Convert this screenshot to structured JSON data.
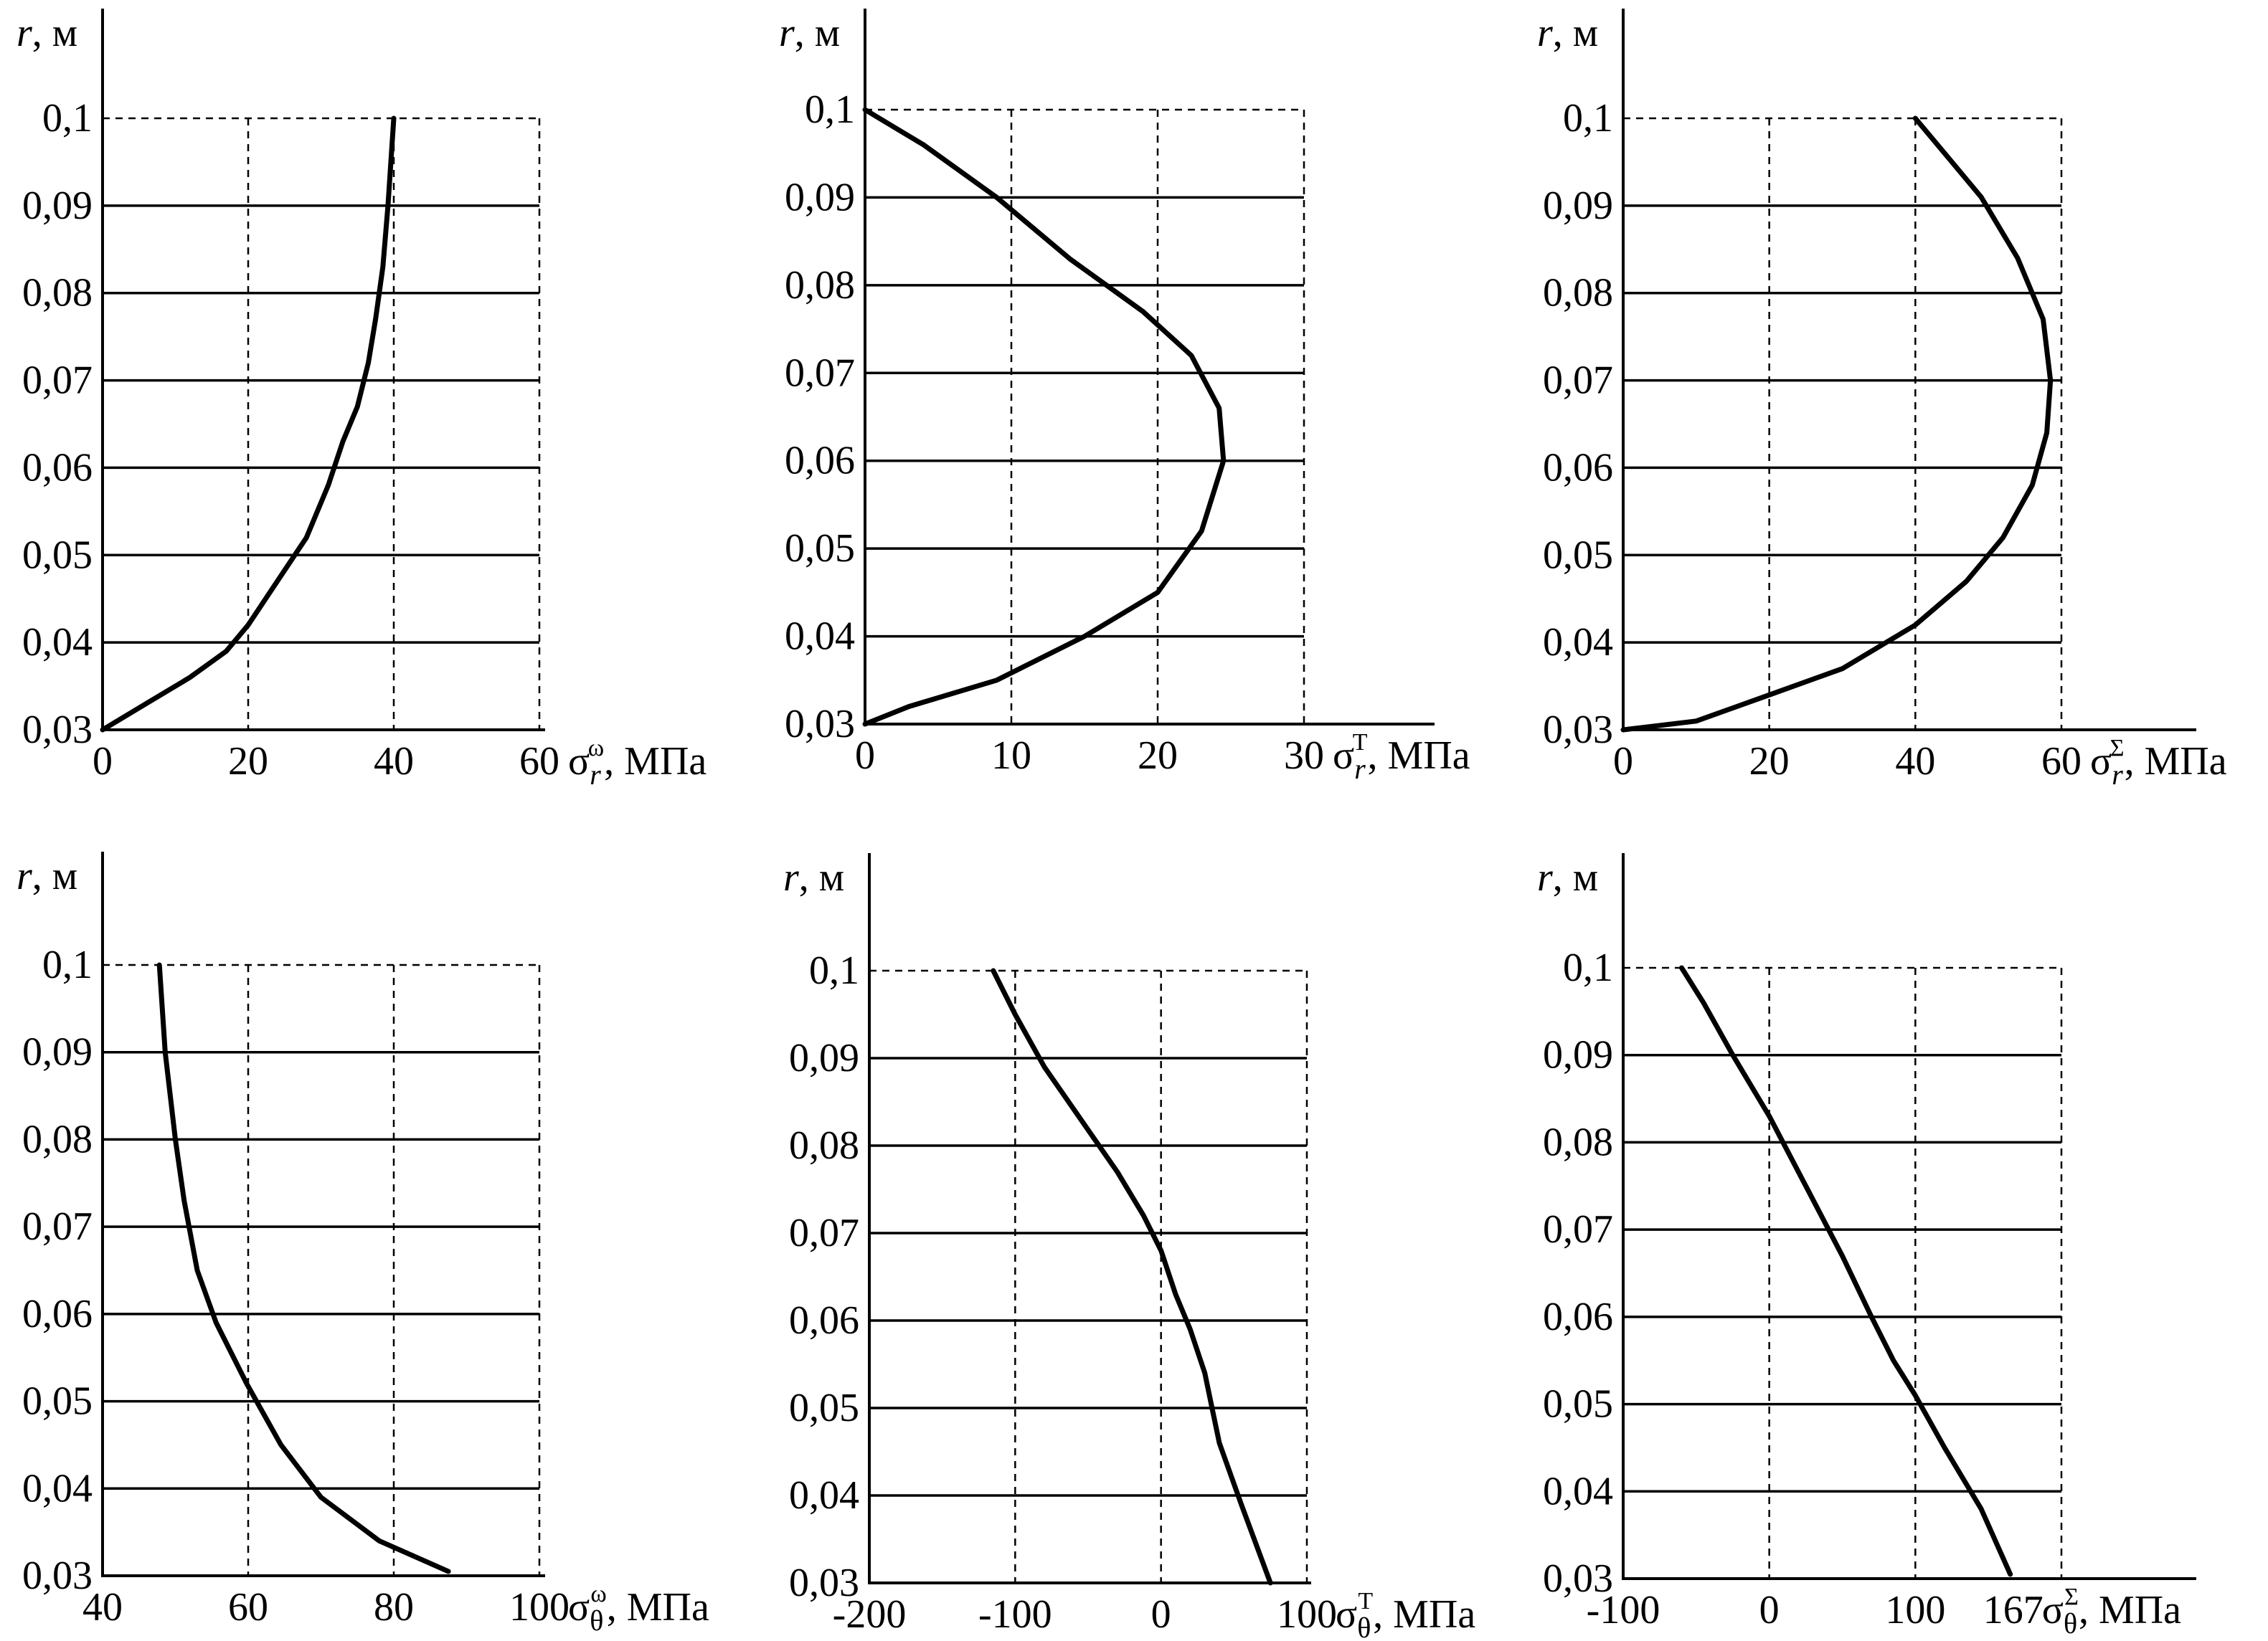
{
  "chart_data": [
    {
      "id": "sr-omega",
      "type": "line",
      "ylabel": {
        "var": "r",
        "unit": ", м"
      },
      "xlabel": {
        "base": "σ",
        "sub": "r",
        "sup": "ω",
        "unit": ", МПа"
      },
      "xlim": [
        0,
        60
      ],
      "ylim": [
        0.03,
        0.1
      ],
      "xticks": [
        0,
        20,
        40,
        60
      ],
      "xtick_labels": [
        "0",
        "20",
        "40",
        "60"
      ],
      "yticks": [
        0.03,
        0.04,
        0.05,
        0.06,
        0.07,
        0.08,
        0.09,
        0.1
      ],
      "ytick_labels": [
        "0,03",
        "0,04",
        "0,05",
        "0,06",
        "0,07",
        "0,08",
        "0,09",
        "0,1"
      ],
      "series": [
        {
          "x": [
            0,
            6,
            12,
            17,
            20,
            24,
            28,
            31,
            33,
            35,
            36.5,
            37.5,
            38.5,
            39.2,
            40
          ],
          "y": [
            0.03,
            0.033,
            0.036,
            0.039,
            0.042,
            0.047,
            0.052,
            0.058,
            0.063,
            0.067,
            0.072,
            0.077,
            0.083,
            0.09,
            0.1
          ]
        }
      ]
    },
    {
      "id": "sr-thermal",
      "type": "line",
      "ylabel": {
        "var": "r",
        "unit": ", м"
      },
      "xlabel": {
        "base": "σ",
        "sub": "r",
        "sup": "T",
        "unit": ", МПа"
      },
      "xlim": [
        0,
        30
      ],
      "ylim": [
        0.03,
        0.1
      ],
      "xticks": [
        0,
        10,
        20,
        30
      ],
      "xtick_labels": [
        "0",
        "10",
        "20",
        "30"
      ],
      "yticks": [
        0.03,
        0.04,
        0.05,
        0.06,
        0.07,
        0.08,
        0.09,
        0.1
      ],
      "ytick_labels": [
        "0,03",
        "0,04",
        "0,05",
        "0,06",
        "0,07",
        "0,08",
        "0,09",
        "0,1"
      ],
      "series": [
        {
          "x": [
            0,
            3,
            9,
            15,
            20,
            23,
            24.5,
            24.2,
            22.3,
            19,
            14,
            9,
            4,
            0
          ],
          "y": [
            0.03,
            0.032,
            0.035,
            0.04,
            0.045,
            0.052,
            0.06,
            0.066,
            0.072,
            0.077,
            0.083,
            0.09,
            0.096,
            0.1
          ]
        }
      ]
    },
    {
      "id": "sr-sum",
      "type": "line",
      "ylabel": {
        "var": "r",
        "unit": ", м"
      },
      "xlabel": {
        "base": "σ",
        "sub": "r",
        "sup": "Σ",
        "unit": ", МПа"
      },
      "xlim": [
        0,
        60
      ],
      "ylim": [
        0.03,
        0.1
      ],
      "xticks": [
        0,
        20,
        40,
        60
      ],
      "xtick_labels": [
        "0",
        "20",
        "40",
        "60"
      ],
      "yticks": [
        0.03,
        0.04,
        0.05,
        0.06,
        0.07,
        0.08,
        0.09,
        0.1
      ],
      "ytick_labels": [
        "0,03",
        "0,04",
        "0,05",
        "0,06",
        "0,07",
        "0,08",
        "0,09",
        "0,1"
      ],
      "series": [
        {
          "x": [
            0,
            10,
            20,
            30,
            40,
            47,
            52,
            56,
            58,
            58.5,
            57.5,
            54,
            49,
            44,
            40
          ],
          "y": [
            0.03,
            0.031,
            0.034,
            0.037,
            0.042,
            0.047,
            0.052,
            0.058,
            0.064,
            0.07,
            0.077,
            0.084,
            0.091,
            0.096,
            0.1
          ]
        }
      ]
    },
    {
      "id": "st-omega",
      "type": "line",
      "ylabel": {
        "var": "r",
        "unit": ", м"
      },
      "xlabel": {
        "base": "σ",
        "sub": "θ",
        "sup": "ω",
        "unit": ", МПа"
      },
      "xlim": [
        40,
        100
      ],
      "ylim": [
        0.03,
        0.1
      ],
      "xticks": [
        40,
        60,
        80,
        100
      ],
      "xtick_labels": [
        "40",
        "60",
        "80",
        "100"
      ],
      "yticks": [
        0.03,
        0.04,
        0.05,
        0.06,
        0.07,
        0.08,
        0.09,
        0.1
      ],
      "ytick_labels": [
        "0,03",
        "0,04",
        "0,05",
        "0,06",
        "0,07",
        "0,08",
        "0,09",
        "0,1"
      ],
      "series": [
        {
          "x": [
            47.8,
            48.6,
            50,
            51.2,
            53,
            55.6,
            59.8,
            64.5,
            70,
            78,
            87.5
          ],
          "y": [
            0.1,
            0.09,
            0.08,
            0.073,
            0.065,
            0.059,
            0.052,
            0.045,
            0.039,
            0.034,
            0.0305
          ]
        }
      ]
    },
    {
      "id": "st-thermal",
      "type": "line",
      "ylabel": {
        "var": "r",
        "unit": ", м"
      },
      "xlabel": {
        "base": "σ",
        "sub": "θ",
        "sup": "T",
        "unit": ", МПа"
      },
      "xlim": [
        -200,
        100
      ],
      "ylim": [
        0.03,
        0.1
      ],
      "xticks": [
        -200,
        -100,
        0,
        100
      ],
      "xtick_labels": [
        "-200",
        "-100",
        "0",
        "100"
      ],
      "yticks": [
        0.03,
        0.04,
        0.05,
        0.06,
        0.07,
        0.08,
        0.09,
        0.1
      ],
      "ytick_labels": [
        "0,03",
        "0,04",
        "0,05",
        "0,06",
        "0,07",
        "0,08",
        "0,09",
        "0,1"
      ],
      "series": [
        {
          "x": [
            -115,
            -100,
            -80,
            -55,
            -30,
            -12,
            0,
            10,
            20,
            30,
            35,
            40,
            55,
            75
          ],
          "y": [
            0.1,
            0.095,
            0.089,
            0.083,
            0.077,
            0.072,
            0.068,
            0.063,
            0.059,
            0.054,
            0.05,
            0.046,
            0.039,
            0.03
          ]
        }
      ]
    },
    {
      "id": "st-sum",
      "type": "line",
      "ylabel": {
        "var": "r",
        "unit": ", м"
      },
      "xlabel": {
        "base": "σ",
        "sub": "θ",
        "sup": "Σ",
        "unit": ", МПа"
      },
      "xlim": [
        -100,
        200
      ],
      "ylim": [
        0.03,
        0.1
      ],
      "xticks": [
        -100,
        0,
        100,
        167
      ],
      "xtick_labels": [
        "-100",
        "0",
        "100",
        "167"
      ],
      "yticks": [
        0.03,
        0.04,
        0.05,
        0.06,
        0.07,
        0.08,
        0.09,
        0.1
      ],
      "ytick_labels": [
        "0,03",
        "0,04",
        "0,05",
        "0,06",
        "0,07",
        "0,08",
        "0,09",
        "0,1"
      ],
      "series": [
        {
          "x": [
            -60,
            -45,
            -25,
            0,
            25,
            50,
            70,
            85,
            100,
            120,
            145,
            165
          ],
          "y": [
            0.1,
            0.096,
            0.09,
            0.083,
            0.075,
            0.067,
            0.06,
            0.055,
            0.051,
            0.045,
            0.038,
            0.0305
          ]
        }
      ]
    }
  ]
}
